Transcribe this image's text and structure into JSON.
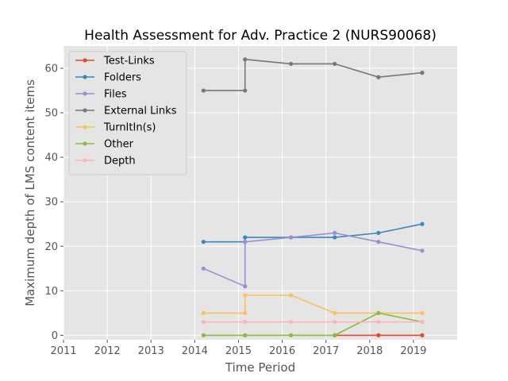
{
  "chart_data": {
    "type": "line",
    "title": "Health Assessment for Adv. Practice 2 (NURS90068)",
    "xlabel": "Time Period",
    "ylabel": "Maximum depth of LMS content items",
    "xlim": [
      2011,
      2020
    ],
    "ylim": [
      -1,
      65
    ],
    "xticks": [
      "2011",
      "2012",
      "2013",
      "2014",
      "2015",
      "2016",
      "2017",
      "2018",
      "2019"
    ],
    "yticks": [
      "0",
      "10",
      "20",
      "30",
      "40",
      "50",
      "60"
    ],
    "grid": true,
    "legend_position": "upper-left",
    "background": "#e5e5e5",
    "series": [
      {
        "name": "Test-Links",
        "color": "#e24a33",
        "x": [
          2017.2,
          2018.2,
          2019.2
        ],
        "y": [
          0,
          0,
          0
        ]
      },
      {
        "name": "Folders",
        "color": "#348abd",
        "x": [
          2014.2,
          2015.15,
          2015.15,
          2016.2,
          2017.2,
          2018.2,
          2019.2
        ],
        "y": [
          21,
          21,
          22,
          22,
          22,
          23,
          25
        ]
      },
      {
        "name": "Files",
        "color": "#988ed5",
        "x": [
          2014.2,
          2015.15,
          2015.15,
          2016.2,
          2017.2,
          2018.2,
          2019.2
        ],
        "y": [
          15,
          11,
          21,
          22,
          23,
          21,
          19
        ]
      },
      {
        "name": "External Links",
        "color": "#777777",
        "x": [
          2014.2,
          2015.15,
          2015.15,
          2016.2,
          2017.2,
          2018.2,
          2019.2
        ],
        "y": [
          55,
          55,
          62,
          61,
          61,
          58,
          59
        ]
      },
      {
        "name": "TurnItIn(s)",
        "color": "#fbc15e",
        "x": [
          2014.2,
          2015.15,
          2015.15,
          2016.2,
          2017.2,
          2018.2,
          2019.2
        ],
        "y": [
          5,
          5,
          9,
          9,
          5,
          5,
          5
        ]
      },
      {
        "name": "Other",
        "color": "#8eba42",
        "x": [
          2014.2,
          2015.15,
          2015.15,
          2016.2,
          2017.2,
          2018.2,
          2019.2
        ],
        "y": [
          0,
          0,
          0,
          0,
          0,
          5,
          3
        ]
      },
      {
        "name": "Depth",
        "color": "#ffb5b8",
        "x": [
          2014.2,
          2015.15,
          2015.15,
          2016.2,
          2017.2,
          2018.2,
          2019.2
        ],
        "y": [
          3,
          3,
          3,
          3,
          3,
          3,
          3
        ]
      }
    ]
  }
}
